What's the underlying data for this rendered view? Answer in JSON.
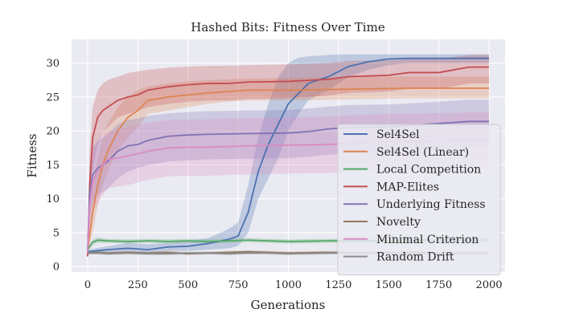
{
  "chart_data": {
    "type": "line",
    "title": "Hashed Bits: Fitness Over Time",
    "xlabel": "Generations",
    "ylabel": "Fitness",
    "xlim": [
      -80,
      2080
    ],
    "ylim": [
      -0.8,
      33.5
    ],
    "xticks": [
      0,
      250,
      500,
      750,
      1000,
      1250,
      1500,
      1750,
      2000
    ],
    "yticks": [
      0,
      5,
      10,
      15,
      20,
      25,
      30
    ],
    "grid": true,
    "legend_position": "lower-right",
    "background_color": "#eaeaf2",
    "series": [
      {
        "name": "Sel4Sel",
        "color": "#4c72b0",
        "x": [
          0,
          100,
          200,
          300,
          400,
          500,
          600,
          700,
          750,
          800,
          850,
          900,
          950,
          1000,
          1050,
          1100,
          1200,
          1300,
          1400,
          1500,
          1600,
          1800,
          2000
        ],
        "y": [
          2.2,
          2.5,
          2.7,
          2.5,
          2.9,
          3.0,
          3.4,
          4.0,
          4.5,
          8.0,
          14.0,
          18.0,
          21.0,
          24.0,
          25.5,
          27.0,
          28.0,
          29.5,
          30.2,
          30.6,
          30.7,
          30.7,
          30.7
        ],
        "lower": [
          2.0,
          2.0,
          2.0,
          2.0,
          2.3,
          2.3,
          2.5,
          2.7,
          3.0,
          5.0,
          10.0,
          13.0,
          16.0,
          20.0,
          22.5,
          24.5,
          26.0,
          28.0,
          29.0,
          29.7,
          30.0,
          30.0,
          30.0
        ],
        "upper": [
          2.5,
          3.0,
          3.5,
          3.3,
          3.5,
          3.8,
          4.2,
          5.5,
          6.5,
          12.0,
          19.0,
          24.0,
          28.0,
          30.0,
          30.8,
          31.0,
          31.2,
          31.3,
          31.3,
          31.3,
          31.3,
          31.3,
          31.3
        ]
      },
      {
        "name": "Sel4Sel (Linear)",
        "color": "#dd8452",
        "x": [
          0,
          25,
          50,
          75,
          100,
          150,
          200,
          250,
          300,
          400,
          500,
          600,
          700,
          800,
          1000,
          1200,
          1400,
          1600,
          1800,
          2000
        ],
        "y": [
          2.5,
          8.0,
          12.0,
          15.0,
          17.0,
          20.0,
          22.0,
          23.0,
          24.5,
          25.0,
          25.3,
          25.6,
          25.8,
          26.0,
          26.0,
          26.1,
          26.2,
          26.3,
          26.3,
          26.3
        ],
        "lower": [
          2.0,
          5.0,
          9.0,
          12.0,
          14.0,
          17.0,
          19.0,
          20.5,
          22.5,
          23.0,
          23.5,
          24.0,
          24.3,
          24.5,
          24.5,
          24.6,
          24.7,
          24.8,
          24.8,
          24.8
        ],
        "upper": [
          3.0,
          12.0,
          16.0,
          19.0,
          21.0,
          23.5,
          25.0,
          26.0,
          26.5,
          27.0,
          27.3,
          27.5,
          27.6,
          27.7,
          27.8,
          27.9,
          28.0,
          28.0,
          28.0,
          28.0
        ]
      },
      {
        "name": "Local Competition",
        "color": "#55a868",
        "x": [
          0,
          25,
          50,
          100,
          200,
          300,
          400,
          500,
          600,
          700,
          800,
          900,
          1000,
          1200,
          1400,
          1600,
          1800,
          2000
        ],
        "y": [
          2.5,
          3.6,
          3.9,
          3.8,
          3.7,
          3.8,
          3.7,
          3.8,
          3.7,
          3.8,
          3.9,
          3.8,
          3.7,
          3.8,
          3.8,
          3.9,
          3.9,
          3.9
        ],
        "lower": [
          2.2,
          3.2,
          3.5,
          3.5,
          3.4,
          3.5,
          3.4,
          3.5,
          3.4,
          3.5,
          3.6,
          3.5,
          3.4,
          3.5,
          3.5,
          3.6,
          3.6,
          3.6
        ],
        "upper": [
          2.8,
          4.0,
          4.3,
          4.1,
          4.0,
          4.1,
          4.0,
          4.1,
          4.0,
          4.1,
          4.2,
          4.1,
          4.0,
          4.1,
          4.1,
          4.2,
          4.2,
          4.2
        ]
      },
      {
        "name": "MAP-Elites",
        "color": "#c44e52",
        "x": [
          0,
          10,
          25,
          50,
          75,
          100,
          150,
          200,
          250,
          300,
          400,
          500,
          600,
          700,
          800,
          1000,
          1200,
          1300,
          1500,
          1600,
          1750,
          1900,
          2000
        ],
        "y": [
          1.5,
          12.0,
          19.0,
          22.0,
          23.0,
          23.5,
          24.5,
          25.0,
          25.3,
          26.0,
          26.5,
          26.8,
          27.0,
          27.0,
          27.2,
          27.3,
          27.6,
          28.0,
          28.2,
          28.6,
          28.6,
          29.4,
          29.4
        ],
        "lower": [
          1.2,
          7.0,
          14.0,
          18.0,
          19.5,
          20.5,
          22.0,
          22.5,
          23.0,
          23.5,
          24.0,
          24.3,
          24.5,
          24.5,
          24.7,
          24.8,
          25.2,
          25.6,
          25.8,
          26.2,
          26.2,
          27.0,
          27.0
        ],
        "upper": [
          2.0,
          17.0,
          23.5,
          26.0,
          27.0,
          27.5,
          28.0,
          28.5,
          28.8,
          29.0,
          29.3,
          29.5,
          29.6,
          29.6,
          29.7,
          29.8,
          30.0,
          30.3,
          30.4,
          30.6,
          30.6,
          31.2,
          31.2
        ]
      },
      {
        "name": "Underlying Fitness",
        "color": "#8172b3",
        "x": [
          0,
          10,
          25,
          50,
          100,
          150,
          200,
          250,
          300,
          400,
          500,
          600,
          800,
          1000,
          1100,
          1200,
          1300,
          1500,
          1700,
          1900,
          2000
        ],
        "y": [
          2.5,
          11.0,
          13.5,
          14.5,
          15.5,
          17.0,
          17.8,
          18.0,
          18.6,
          19.2,
          19.4,
          19.5,
          19.6,
          19.7,
          19.9,
          20.3,
          20.5,
          20.6,
          21.0,
          21.4,
          21.4
        ],
        "lower": [
          2.0,
          7.0,
          9.5,
          10.5,
          11.5,
          13.0,
          14.0,
          14.5,
          15.0,
          15.5,
          15.7,
          15.8,
          15.9,
          16.0,
          16.2,
          16.5,
          16.7,
          16.8,
          17.2,
          17.6,
          17.6
        ],
        "upper": [
          3.0,
          15.0,
          17.5,
          18.5,
          19.5,
          21.0,
          21.6,
          21.8,
          22.2,
          22.6,
          22.8,
          22.9,
          23.0,
          23.1,
          23.3,
          23.6,
          23.8,
          23.9,
          24.2,
          24.6,
          24.6
        ]
      },
      {
        "name": "Novelty",
        "color": "#937860",
        "x": [
          0,
          50,
          100,
          200,
          300,
          400,
          500,
          600,
          700,
          800,
          900,
          1000,
          1200,
          1400,
          1600,
          1800,
          2000
        ],
        "y": [
          2.0,
          2.1,
          2.0,
          2.1,
          2.0,
          2.1,
          1.9,
          2.0,
          2.1,
          2.2,
          2.1,
          2.0,
          2.1,
          2.0,
          2.1,
          2.0,
          2.0
        ],
        "lower": [
          1.8,
          1.9,
          1.8,
          1.9,
          1.8,
          1.9,
          1.7,
          1.8,
          1.9,
          2.0,
          1.9,
          1.8,
          1.9,
          1.8,
          1.9,
          1.8,
          1.8
        ],
        "upper": [
          2.2,
          2.3,
          2.2,
          2.3,
          2.2,
          2.3,
          2.1,
          2.2,
          2.3,
          2.4,
          2.3,
          2.2,
          2.3,
          2.2,
          2.3,
          2.2,
          2.2
        ]
      },
      {
        "name": "Minimal Criterion",
        "color": "#da8bc3",
        "x": [
          0,
          10,
          25,
          50,
          75,
          100,
          150,
          200,
          300,
          400,
          500,
          600,
          800,
          1000,
          1200,
          1300,
          1500,
          1700,
          1900,
          2000
        ],
        "y": [
          2.0,
          9.0,
          12.5,
          14.0,
          15.0,
          15.8,
          16.0,
          16.3,
          17.0,
          17.5,
          17.6,
          17.6,
          17.8,
          17.9,
          18.0,
          18.2,
          18.4,
          18.5,
          18.6,
          18.6
        ],
        "lower": [
          1.8,
          5.0,
          8.0,
          9.5,
          10.5,
          11.5,
          11.8,
          12.0,
          12.8,
          13.3,
          13.4,
          13.4,
          13.6,
          13.7,
          13.8,
          14.0,
          14.2,
          14.3,
          14.4,
          14.4
        ],
        "upper": [
          2.5,
          13.0,
          17.0,
          18.5,
          19.5,
          20.0,
          20.3,
          20.5,
          21.2,
          21.6,
          21.7,
          21.7,
          21.9,
          22.0,
          22.1,
          22.3,
          22.5,
          22.6,
          22.7,
          22.7
        ]
      },
      {
        "name": "Random Drift",
        "color": "#8c8c8c",
        "x": [
          0,
          50,
          100,
          200,
          300,
          400,
          500,
          600,
          700,
          800,
          900,
          1000,
          1200,
          1400,
          1600,
          1800,
          2000
        ],
        "y": [
          2.0,
          2.0,
          1.9,
          2.0,
          1.9,
          1.9,
          2.0,
          2.0,
          1.9,
          2.0,
          2.0,
          1.9,
          2.0,
          2.0,
          1.9,
          2.0,
          1.9
        ],
        "lower": [
          1.8,
          1.8,
          1.7,
          1.8,
          1.7,
          1.7,
          1.8,
          1.8,
          1.7,
          1.8,
          1.8,
          1.7,
          1.8,
          1.8,
          1.7,
          1.8,
          1.7
        ],
        "upper": [
          2.2,
          2.2,
          2.1,
          2.2,
          2.1,
          2.1,
          2.2,
          2.2,
          2.1,
          2.2,
          2.2,
          2.1,
          2.2,
          2.2,
          2.1,
          2.2,
          2.1
        ]
      }
    ]
  }
}
